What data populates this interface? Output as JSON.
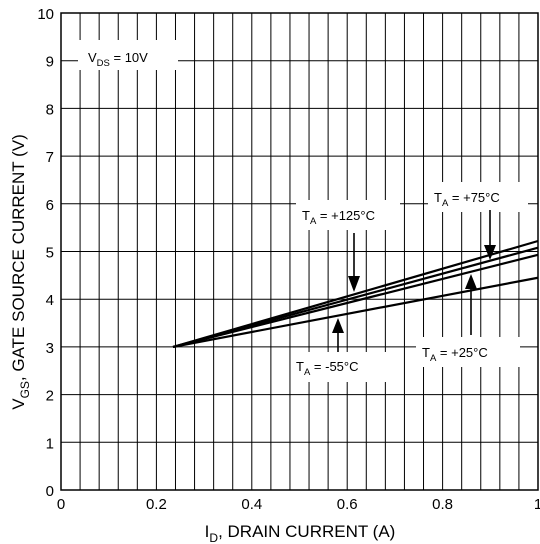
{
  "chart_data": {
    "type": "line",
    "xlabel_main": "I",
    "xlabel_sub": "D",
    "xlabel_rest": ", DRAIN CURRENT (A)",
    "ylabel_main": "V",
    "ylabel_sub": "GS",
    "ylabel_rest": ", GATE SOURCE CURRENT (V)",
    "xlim": [
      0,
      1
    ],
    "ylim": [
      0,
      10
    ],
    "x_tick_labels": [
      "0",
      "0.2",
      "0.4",
      "0.6",
      "0.8",
      "1"
    ],
    "y_tick_labels": [
      "0",
      "1",
      "2",
      "3",
      "4",
      "5",
      "6",
      "7",
      "8",
      "9",
      "10"
    ],
    "grid": true,
    "annotations": {
      "vds": {
        "main": "V",
        "sub": "DS",
        "rest": " = 10V"
      },
      "t125": {
        "main": "T",
        "sub": "A",
        "rest": " = +125°C"
      },
      "t75": {
        "main": "T",
        "sub": "A",
        "rest": " = +75°C"
      },
      "t25": {
        "main": "T",
        "sub": "A",
        "rest": " = +25°C"
      },
      "tm55": {
        "main": "T",
        "sub": "A",
        "rest": " = -55°C"
      }
    },
    "series": [
      {
        "x": [
          0.235,
          1.0
        ],
        "y": [
          3.0,
          5.22
        ]
      },
      {
        "x": [
          0.235,
          1.0
        ],
        "y": [
          3.0,
          5.08
        ]
      },
      {
        "x": [
          0.235,
          1.0
        ],
        "y": [
          3.0,
          4.93
        ]
      },
      {
        "x": [
          0.235,
          1.0
        ],
        "y": [
          3.0,
          4.45
        ]
      }
    ]
  }
}
